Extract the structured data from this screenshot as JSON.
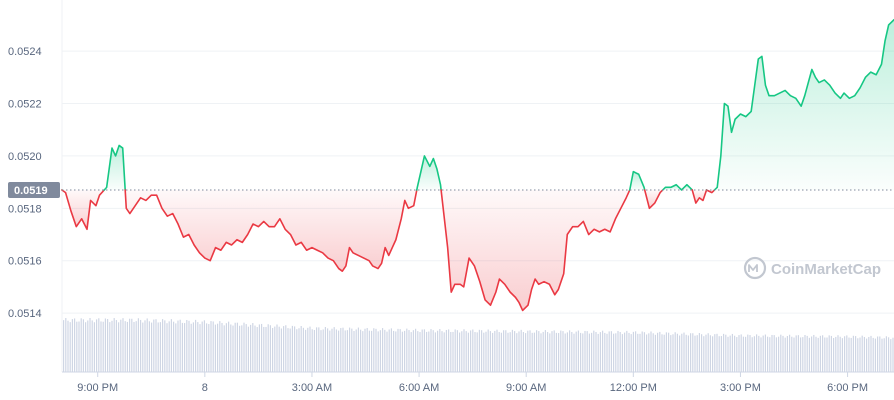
{
  "watermark": {
    "text": "CoinMarketCap"
  },
  "colors": {
    "up": "#16c784",
    "down": "#ea3943",
    "grid": "#eff2f5",
    "axis_text": "#58667e",
    "volume": "#cfd6e4",
    "ref_label_bg": "#808a9d",
    "ref_line": "#808a9d"
  },
  "chart_data": {
    "type": "area",
    "title": "",
    "xlabel": "",
    "ylabel": "",
    "ylim": [
      0.05124,
      0.05258
    ],
    "y_ticks": [
      "0.0514",
      "0.0516",
      "0.0518",
      "0.0520",
      "0.0522",
      "0.0524"
    ],
    "y_tick_values": [
      0.0514,
      0.0516,
      0.0518,
      0.052,
      0.0522,
      0.0524
    ],
    "x_range_hours": [
      -4,
      19.3
    ],
    "x_ticks": [
      "9:00 PM",
      "8",
      "3:00 AM",
      "6:00 AM",
      "9:00 AM",
      "12:00 PM",
      "3:00 PM",
      "6:00 PM"
    ],
    "x_tick_hours": [
      -3,
      0,
      3,
      6,
      9,
      12,
      15,
      18
    ],
    "reference_label": "0.0519",
    "reference_value": 0.05187,
    "grid": true,
    "price_points": [
      [
        -4.0,
        0.05187
      ],
      [
        -3.9,
        0.05186
      ],
      [
        -3.75,
        0.05179
      ],
      [
        -3.6,
        0.05173
      ],
      [
        -3.45,
        0.05176
      ],
      [
        -3.3,
        0.05172
      ],
      [
        -3.2,
        0.05183
      ],
      [
        -3.05,
        0.05181
      ],
      [
        -2.95,
        0.05185
      ],
      [
        -2.75,
        0.05188
      ],
      [
        -2.6,
        0.05203
      ],
      [
        -2.5,
        0.052
      ],
      [
        -2.4,
        0.05204
      ],
      [
        -2.3,
        0.05203
      ],
      [
        -2.2,
        0.0518
      ],
      [
        -2.1,
        0.05178
      ],
      [
        -1.95,
        0.05181
      ],
      [
        -1.8,
        0.05184
      ],
      [
        -1.65,
        0.05183
      ],
      [
        -1.5,
        0.05185
      ],
      [
        -1.35,
        0.05185
      ],
      [
        -1.2,
        0.0518
      ],
      [
        -1.05,
        0.05177
      ],
      [
        -0.9,
        0.05178
      ],
      [
        -0.75,
        0.05174
      ],
      [
        -0.6,
        0.05169
      ],
      [
        -0.45,
        0.0517
      ],
      [
        -0.3,
        0.05166
      ],
      [
        -0.15,
        0.05163
      ],
      [
        0.0,
        0.05161
      ],
      [
        0.15,
        0.0516
      ],
      [
        0.3,
        0.05165
      ],
      [
        0.45,
        0.05164
      ],
      [
        0.6,
        0.05167
      ],
      [
        0.75,
        0.05166
      ],
      [
        0.9,
        0.05168
      ],
      [
        1.05,
        0.05167
      ],
      [
        1.2,
        0.0517
      ],
      [
        1.35,
        0.05174
      ],
      [
        1.5,
        0.05173
      ],
      [
        1.65,
        0.05175
      ],
      [
        1.8,
        0.05173
      ],
      [
        1.95,
        0.05173
      ],
      [
        2.1,
        0.05176
      ],
      [
        2.25,
        0.05172
      ],
      [
        2.4,
        0.0517
      ],
      [
        2.55,
        0.05166
      ],
      [
        2.7,
        0.05167
      ],
      [
        2.85,
        0.05164
      ],
      [
        3.0,
        0.05165
      ],
      [
        3.15,
        0.05164
      ],
      [
        3.3,
        0.05163
      ],
      [
        3.45,
        0.05161
      ],
      [
        3.6,
        0.0516
      ],
      [
        3.75,
        0.05157
      ],
      [
        3.85,
        0.05156
      ],
      [
        3.95,
        0.05158
      ],
      [
        4.05,
        0.05165
      ],
      [
        4.15,
        0.05163
      ],
      [
        4.3,
        0.05162
      ],
      [
        4.45,
        0.05161
      ],
      [
        4.6,
        0.0516
      ],
      [
        4.7,
        0.05158
      ],
      [
        4.85,
        0.05157
      ],
      [
        4.95,
        0.05159
      ],
      [
        5.05,
        0.05165
      ],
      [
        5.15,
        0.05162
      ],
      [
        5.25,
        0.05165
      ],
      [
        5.35,
        0.05168
      ],
      [
        5.5,
        0.05176
      ],
      [
        5.6,
        0.05183
      ],
      [
        5.7,
        0.0518
      ],
      [
        5.85,
        0.05181
      ],
      [
        5.95,
        0.05188
      ],
      [
        6.05,
        0.05194
      ],
      [
        6.15,
        0.052
      ],
      [
        6.3,
        0.05196
      ],
      [
        6.4,
        0.05199
      ],
      [
        6.5,
        0.05195
      ],
      [
        6.6,
        0.05189
      ],
      [
        6.7,
        0.05177
      ],
      [
        6.8,
        0.05165
      ],
      [
        6.9,
        0.05148
      ],
      [
        7.0,
        0.05151
      ],
      [
        7.15,
        0.05151
      ],
      [
        7.25,
        0.0515
      ],
      [
        7.4,
        0.05161
      ],
      [
        7.55,
        0.05158
      ],
      [
        7.7,
        0.05152
      ],
      [
        7.85,
        0.05145
      ],
      [
        8.0,
        0.05143
      ],
      [
        8.15,
        0.05148
      ],
      [
        8.25,
        0.05153
      ],
      [
        8.4,
        0.05151
      ],
      [
        8.55,
        0.05148
      ],
      [
        8.7,
        0.05146
      ],
      [
        8.8,
        0.05144
      ],
      [
        8.9,
        0.05141
      ],
      [
        9.05,
        0.05143
      ],
      [
        9.15,
        0.05149
      ],
      [
        9.25,
        0.05153
      ],
      [
        9.35,
        0.05151
      ],
      [
        9.5,
        0.05152
      ],
      [
        9.65,
        0.05151
      ],
      [
        9.8,
        0.05147
      ],
      [
        9.9,
        0.05149
      ],
      [
        10.05,
        0.05155
      ],
      [
        10.15,
        0.0517
      ],
      [
        10.3,
        0.05173
      ],
      [
        10.45,
        0.05173
      ],
      [
        10.6,
        0.05175
      ],
      [
        10.75,
        0.0517
      ],
      [
        10.9,
        0.05172
      ],
      [
        11.05,
        0.05171
      ],
      [
        11.2,
        0.05172
      ],
      [
        11.35,
        0.05171
      ],
      [
        11.5,
        0.05176
      ],
      [
        11.65,
        0.0518
      ],
      [
        11.8,
        0.05184
      ],
      [
        11.9,
        0.05187
      ],
      [
        12.0,
        0.05194
      ],
      [
        12.15,
        0.05193
      ],
      [
        12.3,
        0.05188
      ],
      [
        12.45,
        0.0518
      ],
      [
        12.6,
        0.05182
      ],
      [
        12.75,
        0.05186
      ],
      [
        12.9,
        0.05188
      ],
      [
        13.05,
        0.05188
      ],
      [
        13.2,
        0.05189
      ],
      [
        13.35,
        0.05187
      ],
      [
        13.5,
        0.05189
      ],
      [
        13.65,
        0.05187
      ],
      [
        13.75,
        0.05182
      ],
      [
        13.85,
        0.05184
      ],
      [
        13.95,
        0.05183
      ],
      [
        14.05,
        0.05187
      ],
      [
        14.2,
        0.05186
      ],
      [
        14.35,
        0.05188
      ],
      [
        14.45,
        0.052
      ],
      [
        14.55,
        0.0522
      ],
      [
        14.65,
        0.05219
      ],
      [
        14.75,
        0.05209
      ],
      [
        14.85,
        0.05214
      ],
      [
        15.0,
        0.05216
      ],
      [
        15.15,
        0.05215
      ],
      [
        15.3,
        0.05217
      ],
      [
        15.4,
        0.05227
      ],
      [
        15.5,
        0.05237
      ],
      [
        15.6,
        0.05238
      ],
      [
        15.7,
        0.05227
      ],
      [
        15.8,
        0.05223
      ],
      [
        15.95,
        0.05223
      ],
      [
        16.1,
        0.05224
      ],
      [
        16.25,
        0.05225
      ],
      [
        16.4,
        0.05223
      ],
      [
        16.55,
        0.05222
      ],
      [
        16.7,
        0.05219
      ],
      [
        16.8,
        0.05223
      ],
      [
        16.9,
        0.05228
      ],
      [
        17.0,
        0.05233
      ],
      [
        17.1,
        0.0523
      ],
      [
        17.2,
        0.05228
      ],
      [
        17.35,
        0.05229
      ],
      [
        17.5,
        0.05227
      ],
      [
        17.65,
        0.05224
      ],
      [
        17.8,
        0.05222
      ],
      [
        17.9,
        0.05224
      ],
      [
        18.05,
        0.05222
      ],
      [
        18.2,
        0.05223
      ],
      [
        18.35,
        0.05226
      ],
      [
        18.5,
        0.0523
      ],
      [
        18.65,
        0.05232
      ],
      [
        18.8,
        0.05231
      ],
      [
        18.95,
        0.05235
      ],
      [
        19.05,
        0.05244
      ],
      [
        19.15,
        0.0525
      ],
      [
        19.3,
        0.05252
      ]
    ],
    "volume_points": [
      [
        -4.0,
        0.5
      ],
      [
        -2.0,
        0.5
      ],
      [
        0.0,
        0.48
      ],
      [
        3.0,
        0.42
      ],
      [
        6.0,
        0.4
      ],
      [
        9.0,
        0.39
      ],
      [
        12.0,
        0.38
      ],
      [
        15.0,
        0.35
      ],
      [
        18.0,
        0.34
      ],
      [
        19.3,
        0.33
      ]
    ]
  }
}
